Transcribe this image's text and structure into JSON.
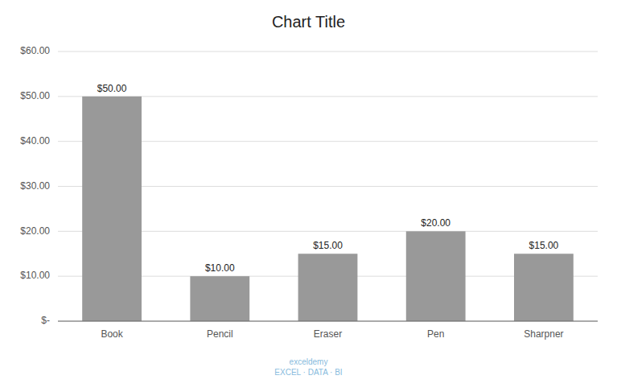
{
  "chart_data": {
    "type": "bar",
    "title": "Chart Title",
    "categories": [
      "Book",
      "Pencil",
      "Eraser",
      "Pen",
      "Sharpner"
    ],
    "values": [
      50,
      10,
      15,
      20,
      15
    ],
    "value_labels": [
      "$50.00",
      "$10.00",
      "$15.00",
      "$20.00",
      "$15.00"
    ],
    "data_labels": true,
    "color": "#999999",
    "ylim": [
      0,
      60
    ],
    "yticks": [
      {
        "value": 0,
        "label": "$-"
      },
      {
        "value": 10,
        "label": "$10.00"
      },
      {
        "value": 20,
        "label": "$20.00"
      },
      {
        "value": 30,
        "label": "$30.00"
      },
      {
        "value": 40,
        "label": "$40.00"
      },
      {
        "value": 50,
        "label": "$50.00"
      },
      {
        "value": 60,
        "label": "$60.00"
      }
    ],
    "grid": true,
    "annotations": [
      "exceldemy\nEXCEL · DATA · BI"
    ]
  }
}
